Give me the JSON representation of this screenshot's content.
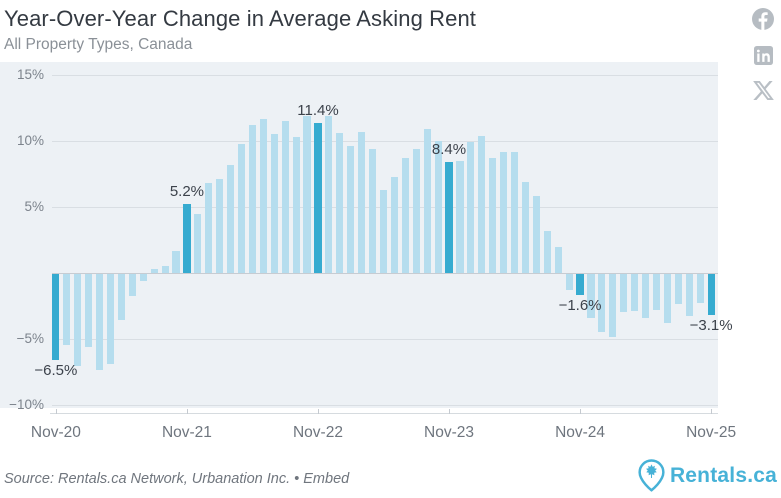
{
  "header": {
    "title": "Year-Over-Year Change in Average Asking Rent",
    "subtitle": "All Property Types, Canada"
  },
  "social": {
    "icons": [
      "facebook",
      "linkedin",
      "x"
    ]
  },
  "chart_data": {
    "type": "bar",
    "title": "Year-Over-Year Change in Average Asking Rent",
    "subtitle": "All Property Types, Canada",
    "unit": "%",
    "ylim": [
      -10,
      15
    ],
    "grid": "horizontal",
    "legend": "none",
    "categories": [
      "Nov-20",
      "Dec-20",
      "Jan-21",
      "Feb-21",
      "Mar-21",
      "Apr-21",
      "May-21",
      "Jun-21",
      "Jul-21",
      "Aug-21",
      "Sep-21",
      "Oct-21",
      "Nov-21",
      "Dec-21",
      "Jan-22",
      "Feb-22",
      "Mar-22",
      "Apr-22",
      "May-22",
      "Jun-22",
      "Jul-22",
      "Aug-22",
      "Sep-22",
      "Oct-22",
      "Nov-22",
      "Dec-22",
      "Jan-23",
      "Feb-23",
      "Mar-23",
      "Apr-23",
      "May-23",
      "Jun-23",
      "Jul-23",
      "Aug-23",
      "Sep-23",
      "Oct-23",
      "Nov-23",
      "Dec-23",
      "Jan-24",
      "Feb-24",
      "Mar-24",
      "Apr-24",
      "May-24",
      "Jun-24",
      "Jul-24",
      "Aug-24",
      "Sep-24",
      "Oct-24",
      "Nov-24",
      "Dec-24",
      "Jan-25",
      "Feb-25",
      "Mar-25",
      "Apr-25",
      "May-25",
      "Jun-25",
      "Jul-25",
      "Aug-25",
      "Sep-25",
      "Oct-25",
      "Nov-25"
    ],
    "values": [
      -6.5,
      -5.4,
      -7.0,
      -5.5,
      -7.3,
      -6.8,
      -3.5,
      -1.7,
      -0.5,
      0.3,
      0.5,
      1.7,
      5.2,
      4.5,
      6.8,
      7.1,
      8.2,
      9.8,
      11.2,
      11.7,
      10.5,
      11.5,
      10.3,
      11.9,
      11.4,
      11.9,
      10.6,
      9.6,
      10.7,
      9.4,
      6.3,
      7.3,
      8.7,
      9.4,
      10.9,
      10.0,
      8.4,
      8.5,
      9.9,
      10.4,
      8.7,
      9.2,
      9.2,
      6.9,
      5.8,
      3.2,
      2.0,
      -1.2,
      -1.6,
      -3.3,
      -4.4,
      -4.8,
      -2.9,
      -2.8,
      -3.3,
      -2.7,
      -3.7,
      -2.3,
      -3.2,
      -2.2,
      -3.1
    ],
    "highlight_indices": [
      0,
      12,
      24,
      36,
      48,
      60
    ],
    "annotations": [
      {
        "index": 0,
        "text": "−6.5%",
        "placement": "below"
      },
      {
        "index": 12,
        "text": "5.2%",
        "placement": "above"
      },
      {
        "index": 24,
        "text": "11.4%",
        "placement": "above"
      },
      {
        "index": 36,
        "text": "8.4%",
        "placement": "above"
      },
      {
        "index": 48,
        "text": "−1.6%",
        "placement": "below"
      },
      {
        "index": 60,
        "text": "−3.1%",
        "placement": "below"
      }
    ],
    "y_ticks": [
      {
        "value": 15,
        "label": "15%"
      },
      {
        "value": 10,
        "label": "10%"
      },
      {
        "value": 5,
        "label": "5%"
      },
      {
        "value": 0,
        "label": ""
      },
      {
        "value": -5,
        "label": "−5%"
      },
      {
        "value": -10,
        "label": "−10%"
      }
    ],
    "x_ticks": [
      {
        "index": 0,
        "label": "Nov-20"
      },
      {
        "index": 12,
        "label": "Nov-21"
      },
      {
        "index": 24,
        "label": "Nov-22"
      },
      {
        "index": 36,
        "label": "Nov-23"
      },
      {
        "index": 48,
        "label": "Nov-24"
      },
      {
        "index": 60,
        "label": "Nov-25"
      }
    ],
    "colors": {
      "bar_light": "#b5ddee",
      "bar_dark": "#36abd0",
      "plot_bg": "#edf1f5",
      "gridline": "#d9dee3",
      "zero_line": "#c7ccd2",
      "data_label": "#3c424b",
      "axis_label": "#7c838c",
      "accent_teal": "#47b2d7",
      "social_gray": "#b6bcc2"
    }
  },
  "footer": {
    "source": "Source: Rentals.ca Network, Urbanation Inc.",
    "separator": "•",
    "embed_label": "Embed",
    "logo_text": "Rentals.ca"
  }
}
